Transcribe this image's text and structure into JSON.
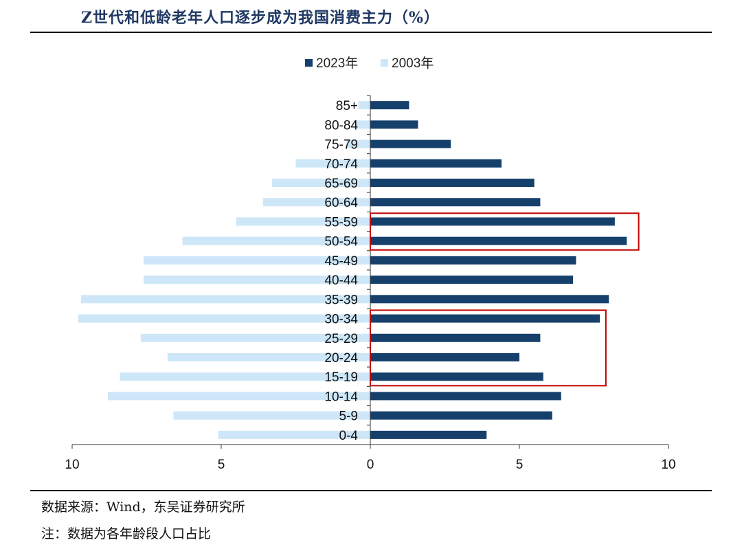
{
  "header": {
    "title": "Z世代和低龄老年人口逐步成为我国消费主力（%）"
  },
  "footer": {
    "source": "数据来源：Wind，东吴证券研究所",
    "note": "注：数据为各年龄段人口占比"
  },
  "colors": {
    "series_2023": "#16406c",
    "series_2003": "#cde7f8",
    "highlight_box": "#c00000"
  },
  "chart_data": {
    "type": "bar",
    "orientation": "horizontal-population-pyramid",
    "categories": [
      "85+",
      "80-84",
      "75-79",
      "70-74",
      "65-69",
      "60-64",
      "55-59",
      "50-54",
      "45-49",
      "40-44",
      "35-39",
      "30-34",
      "25-29",
      "20-24",
      "15-19",
      "10-14",
      "5-9",
      "0-4"
    ],
    "series": [
      {
        "name": "2023年",
        "side": "right",
        "values": [
          1.3,
          1.6,
          2.7,
          4.4,
          5.5,
          5.7,
          8.2,
          8.6,
          6.9,
          6.8,
          8.0,
          7.7,
          5.7,
          5.0,
          5.8,
          6.4,
          6.1,
          3.9
        ]
      },
      {
        "name": "2003年",
        "side": "left",
        "values": [
          0.4,
          0.5,
          0.8,
          2.5,
          3.3,
          3.6,
          4.5,
          6.3,
          7.6,
          7.6,
          9.7,
          9.8,
          7.7,
          6.8,
          8.4,
          8.8,
          6.6,
          5.1
        ]
      }
    ],
    "xlim": [
      -10,
      10
    ],
    "xticks": [
      -10,
      -5,
      0,
      5,
      10
    ],
    "xtick_labels": [
      "10",
      "5",
      "0",
      "5",
      "10"
    ],
    "legend_position": "top-center",
    "grid": false,
    "highlights": [
      {
        "categories": [
          "55-59",
          "50-54"
        ],
        "x_extent": 9.0
      },
      {
        "categories": [
          "30-34",
          "25-29",
          "20-24",
          "15-19"
        ],
        "x_extent": 7.9
      }
    ]
  }
}
